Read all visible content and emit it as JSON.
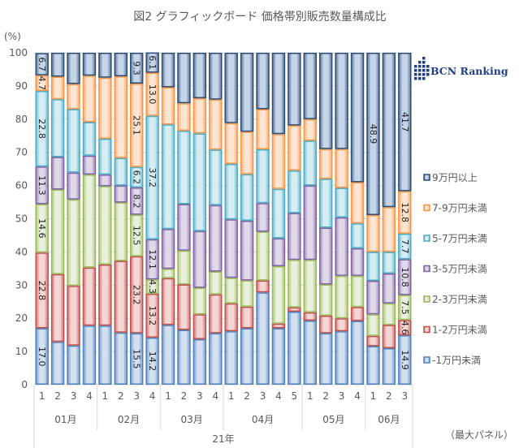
{
  "chart_data": {
    "type": "bar",
    "stacked": true,
    "title": "図2 グラフィックボード 価格帯別販売数量構成比",
    "ylabel": "(%)",
    "ylim": [
      0,
      100
    ],
    "yticks": [
      0,
      10,
      20,
      30,
      40,
      50,
      60,
      70,
      80,
      90,
      100
    ],
    "footnote": "（最大パネル）",
    "year_label": "21年",
    "months": [
      {
        "label": "01月",
        "weeks": [
          "1",
          "2",
          "3",
          "4"
        ]
      },
      {
        "label": "02月",
        "weeks": [
          "1",
          "2",
          "3",
          "4"
        ]
      },
      {
        "label": "03月",
        "weeks": [
          "1",
          "2",
          "3",
          "4"
        ]
      },
      {
        "label": "04月",
        "weeks": [
          "1",
          "2",
          "3",
          "4",
          "5"
        ]
      },
      {
        "label": "05月",
        "weeks": [
          "1",
          "2",
          "3",
          "4"
        ]
      },
      {
        "label": "06月",
        "weeks": [
          "1",
          "2",
          "3"
        ]
      }
    ],
    "legend_position": "right",
    "series": [
      {
        "name": "-1万円未満",
        "color": "#4f81bd",
        "fill": "#d3e0f0",
        "values": [
          17.0,
          12.9,
          11.8,
          17.8,
          17.8,
          15.7,
          15.5,
          14.2,
          18.0,
          16.5,
          13.7,
          15.5,
          16.1,
          17.0,
          27.8,
          17.0,
          22.0,
          19.3,
          15.5,
          16.1,
          19.2,
          11.6,
          11.0,
          14.9
        ],
        "labels": [
          "17.0",
          null,
          null,
          null,
          null,
          null,
          "15.5",
          "14.2",
          null,
          null,
          null,
          null,
          null,
          null,
          null,
          null,
          null,
          null,
          null,
          null,
          null,
          null,
          null,
          "14.9"
        ]
      },
      {
        "name": "1-2万円未満",
        "color": "#c0504d",
        "fill": "#f4d6d5",
        "values": [
          22.8,
          20.4,
          18.0,
          17.5,
          18.4,
          21.6,
          23.2,
          13.2,
          14.1,
          13.7,
          7.5,
          11.7,
          8.4,
          6.5,
          3.6,
          1.4,
          1.3,
          2.5,
          5.3,
          3.9,
          4.2,
          3.1,
          7.0,
          4.6
        ],
        "labels": [
          "22.8",
          null,
          null,
          null,
          null,
          null,
          "23.2",
          "13.2",
          null,
          null,
          null,
          null,
          null,
          null,
          null,
          null,
          null,
          null,
          null,
          null,
          null,
          null,
          null,
          "4.6"
        ]
      },
      {
        "name": "2-3万円未満",
        "color": "#9bbb59",
        "fill": "#e9f0dd",
        "values": [
          14.6,
          25.5,
          26.0,
          28.0,
          23.6,
          17.6,
          12.5,
          4.3,
          2.8,
          10.2,
          8.0,
          6.9,
          7.7,
          7.9,
          14.7,
          17.3,
          14.3,
          15.8,
          9.4,
          12.8,
          9.4,
          6.5,
          6.5,
          7.5
        ],
        "labels": [
          "14.6",
          null,
          null,
          null,
          null,
          null,
          "12.5",
          "4.3",
          null,
          null,
          null,
          null,
          null,
          null,
          null,
          null,
          null,
          null,
          null,
          null,
          null,
          null,
          null,
          "7.5"
        ]
      },
      {
        "name": "3-5万円未満",
        "color": "#8064a2",
        "fill": "#e0d9ea",
        "values": [
          11.3,
          9.8,
          8.1,
          5.7,
          3.5,
          5.1,
          8.2,
          12.1,
          12.0,
          14.0,
          17.1,
          20.0,
          17.6,
          18.0,
          8.6,
          8.4,
          14.1,
          22.4,
          17.1,
          17.6,
          8.3,
          10.1,
          9.0,
          10.8
        ],
        "labels": [
          "11.3",
          null,
          null,
          null,
          null,
          null,
          "8.2",
          "12.1",
          null,
          null,
          null,
          null,
          null,
          null,
          null,
          null,
          null,
          null,
          null,
          null,
          null,
          null,
          null,
          "10.8"
        ]
      },
      {
        "name": "5-7万円未満",
        "color": "#4bacc6",
        "fill": "#d6edf3",
        "values": [
          22.8,
          17.4,
          19.1,
          10.1,
          10.8,
          8.3,
          6.2,
          37.2,
          31.5,
          22.1,
          29.4,
          16.7,
          16.7,
          14.0,
          16.2,
          14.9,
          12.8,
          13.5,
          14.7,
          8.9,
          7.5,
          8.7,
          6.5,
          7.7
        ],
        "labels": [
          "22.8",
          null,
          null,
          null,
          null,
          null,
          "6.2",
          "37.2",
          null,
          null,
          null,
          null,
          null,
          null,
          null,
          null,
          null,
          null,
          null,
          null,
          null,
          null,
          null,
          "7.7"
        ]
      },
      {
        "name": "7-9万円未満",
        "color": "#f79646",
        "fill": "#fde5d3",
        "values": [
          4.7,
          6.8,
          7.6,
          14.0,
          18.4,
          24.6,
          25.1,
          13.0,
          11.2,
          8.3,
          10.6,
          15.1,
          12.3,
          12.8,
          12.1,
          16.5,
          13.6,
          6.5,
          9.0,
          11.7,
          12.4,
          11.1,
          13.5,
          12.8
        ],
        "labels": [
          "4.7",
          null,
          null,
          null,
          null,
          null,
          "25.1",
          "13.0",
          null,
          null,
          null,
          null,
          null,
          null,
          null,
          null,
          null,
          null,
          null,
          null,
          null,
          null,
          null,
          "12.8"
        ]
      },
      {
        "name": "9万円以上",
        "color": "#2c4d75",
        "fill": "#c6d6ea",
        "values": [
          6.7,
          7.2,
          9.4,
          6.9,
          7.5,
          7.1,
          9.3,
          6.1,
          10.4,
          15.2,
          13.7,
          14.1,
          21.2,
          23.8,
          17.0,
          24.5,
          21.9,
          20.0,
          29.0,
          29.0,
          39.0,
          48.9,
          46.5,
          41.7
        ],
        "labels": [
          "6.7",
          null,
          null,
          null,
          null,
          null,
          "9.3",
          "6.1",
          null,
          null,
          null,
          null,
          null,
          null,
          null,
          null,
          null,
          null,
          null,
          null,
          null,
          "48.9",
          null,
          "41.7"
        ]
      }
    ]
  },
  "logo": {
    "text": "BCN Ranking"
  }
}
